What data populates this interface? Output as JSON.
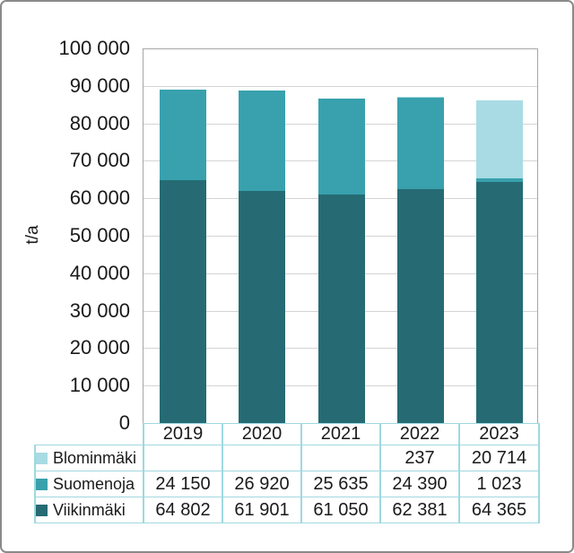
{
  "frame": {
    "background": "#ffffff",
    "border_color": "#8a8a8a"
  },
  "chart_data": {
    "type": "bar",
    "stacked": true,
    "title": "",
    "xlabel": "",
    "ylabel": "t/a",
    "ylim": [
      0,
      100000
    ],
    "ytick_interval": 10000,
    "ytick_labels": [
      "100 000",
      "90 000",
      "80 000",
      "70 000",
      "60 000",
      "50 000",
      "40 000",
      "30 000",
      "20 000",
      "10 000",
      "0"
    ],
    "grid": true,
    "legend_position": "data-table-left",
    "categories": [
      "2019",
      "2020",
      "2021",
      "2022",
      "2023"
    ],
    "series": [
      {
        "name": "Blominmäki",
        "color": "#a8dbe3",
        "values": [
          null,
          null,
          null,
          237,
          20714
        ],
        "display": [
          "",
          "",
          "",
          "237",
          "20 714"
        ]
      },
      {
        "name": "Suomenoja",
        "color": "#38a1ad",
        "values": [
          24150,
          26920,
          25635,
          24390,
          1023
        ],
        "display": [
          "24 150",
          "26 920",
          "25 635",
          "24 390",
          "1 023"
        ]
      },
      {
        "name": "Viikinmäki",
        "color": "#266b74",
        "values": [
          64802,
          61901,
          61050,
          62381,
          64365
        ],
        "display": [
          "64 802",
          "61 901",
          "61 050",
          "62 381",
          "64 365"
        ]
      }
    ],
    "colors": {
      "gridline": "#d4d4d4",
      "plot_border": "#a6a6a6",
      "table_border": "#9fd8e0",
      "text": "#1a1a1a"
    }
  }
}
